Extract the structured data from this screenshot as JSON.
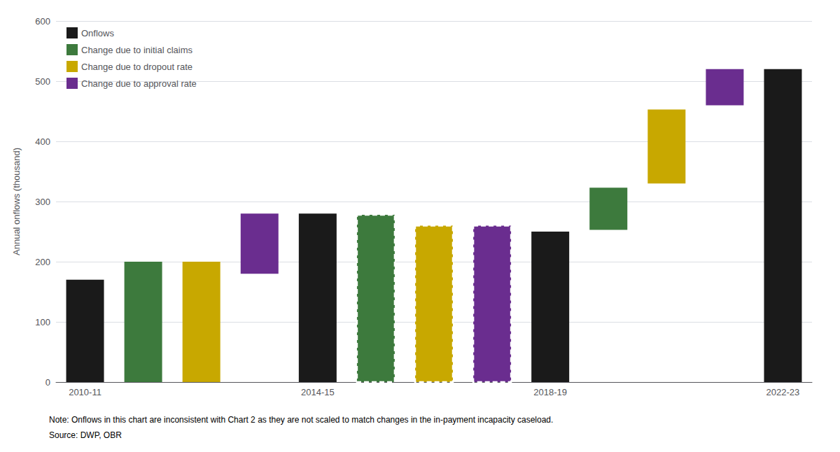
{
  "chart_data": {
    "type": "bar",
    "categories": [
      "2010-11",
      null,
      null,
      null,
      "2014-15",
      null,
      null,
      null,
      "2018-19",
      null,
      null,
      null,
      "2022-23"
    ],
    "ylabel": "Annual onflows (thousand)",
    "ylim": [
      0,
      600
    ],
    "yticks": [
      0,
      100,
      200,
      300,
      400,
      500,
      600
    ],
    "grid": true,
    "legend": "upper left",
    "annotations": [
      "Note: Onflows in this chart are inconsistent with Chart 2 as they are not scaled to match changes in the in-payment incapacity caseload.",
      "Source: DWP, OBR"
    ],
    "series": [
      {
        "name": "Onflows",
        "color": "#1a1a1a",
        "values": [
          170,
          null,
          null,
          null,
          280,
          null,
          null,
          null,
          250,
          null,
          null,
          null,
          520
        ],
        "bottoms": [
          0,
          null,
          null,
          null,
          0,
          null,
          null,
          null,
          0,
          null,
          null,
          null,
          0
        ]
      },
      {
        "name": "Change due to initial claims",
        "color": "#3d7a3d",
        "values": [
          null,
          200,
          null,
          null,
          null,
          null,
          null,
          null,
          null,
          323,
          null,
          null,
          null
        ],
        "bottoms": [
          null,
          0,
          null,
          null,
          null,
          null,
          null,
          null,
          null,
          253,
          null,
          null,
          null
        ]
      },
      {
        "name": "Change due to dropout rate",
        "color": "#c8a800",
        "values": [
          null,
          null,
          200,
          null,
          null,
          null,
          null,
          null,
          null,
          null,
          453,
          null,
          null
        ],
        "bottoms": [
          null,
          null,
          0,
          null,
          null,
          null,
          null,
          null,
          null,
          null,
          330,
          null,
          null
        ]
      },
      {
        "name": "Change due to approval rate",
        "color": "#6a2d8f",
        "values": [
          null,
          null,
          null,
          280,
          null,
          null,
          null,
          null,
          null,
          null,
          null,
          520,
          null
        ],
        "bottoms": [
          null,
          null,
          null,
          180,
          null,
          null,
          null,
          null,
          null,
          null,
          null,
          460,
          null
        ]
      },
      {
        "color": "#3d7a3d",
        "line_style": "dashed",
        "values": [
          null,
          null,
          null,
          null,
          null,
          278,
          null,
          null,
          null,
          null,
          null,
          null,
          null
        ],
        "bottoms": [
          null,
          null,
          null,
          null,
          null,
          0,
          null,
          null,
          null,
          null,
          null,
          null,
          null
        ]
      },
      {
        "color": "#c8a800",
        "line_style": "dashed",
        "values": [
          null,
          null,
          null,
          null,
          null,
          null,
          260,
          null,
          null,
          null,
          null,
          null,
          null
        ],
        "bottoms": [
          null,
          null,
          null,
          null,
          null,
          null,
          0,
          null,
          null,
          null,
          null,
          null,
          null
        ]
      },
      {
        "color": "#6a2d8f",
        "line_style": "dashed",
        "values": [
          null,
          null,
          null,
          null,
          null,
          null,
          null,
          260,
          null,
          null,
          null,
          null,
          null
        ],
        "bottoms": [
          null,
          null,
          null,
          null,
          null,
          null,
          null,
          0,
          null,
          null,
          null,
          null,
          null
        ]
      }
    ]
  }
}
